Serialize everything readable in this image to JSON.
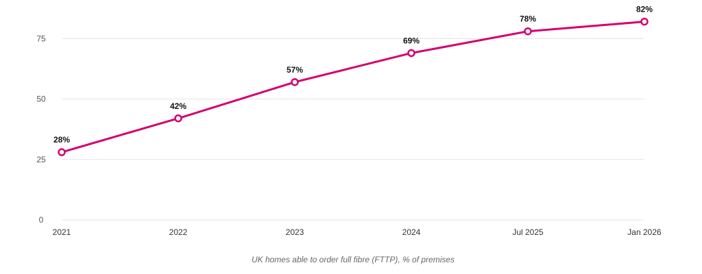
{
  "chart_data": {
    "type": "line",
    "categories": [
      "2021",
      "2022",
      "2023",
      "2024",
      "Jul 2025",
      "Jan 2026"
    ],
    "series": [
      {
        "values": [
          28,
          42,
          57,
          69,
          78,
          82
        ],
        "color": "#d4006f"
      }
    ],
    "data_labels": [
      "28%",
      "42%",
      "57%",
      "69%",
      "78%",
      "82%"
    ],
    "yticks": [
      0,
      25,
      50,
      75
    ],
    "ylim": [
      0,
      85
    ],
    "grid": true,
    "xlabel": "UK homes able to order full fibre (FTTP), % of premises",
    "ylabel": "",
    "title": ""
  }
}
